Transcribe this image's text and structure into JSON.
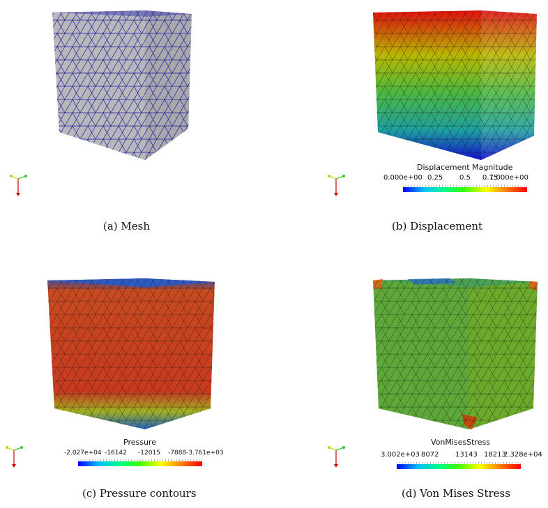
{
  "panels": {
    "mesh": {
      "caption": "(a) Mesh"
    },
    "displacement": {
      "caption": "(b) Displacement",
      "colorbar": {
        "title": "Displacement Magnitude",
        "ticks": [
          "0.000e+00",
          "0.25",
          "0.5",
          "0.75",
          "1.000e+00"
        ],
        "range": [
          0,
          1
        ]
      }
    },
    "pressure": {
      "caption": "(c) Pressure contours",
      "colorbar": {
        "title": "Pressure",
        "ticks": [
          "-2.027e+04",
          "-16142",
          "-12015",
          "-7888",
          "-3.761e+03"
        ],
        "range": [
          -20270,
          -3761
        ]
      }
    },
    "vonmises": {
      "caption": "(d) Von Mises Stress",
      "colorbar": {
        "title": "VonMisesStress",
        "ticks": [
          "3.002e+03",
          "8072",
          "13143",
          "18213",
          "2.328e+04"
        ],
        "range": [
          3002,
          23280
        ]
      }
    }
  },
  "colors": {
    "mesh_fill": "#b8b8bc",
    "mesh_lines": "#1f1f9a",
    "colormap": [
      "#0000ff",
      "#00bfff",
      "#00ff80",
      "#80ff00",
      "#ffff00",
      "#ff8000",
      "#ff0000"
    ],
    "axis_x": "#33cc33",
    "axis_y": "#cccc00",
    "axis_z": "#cc0000"
  }
}
